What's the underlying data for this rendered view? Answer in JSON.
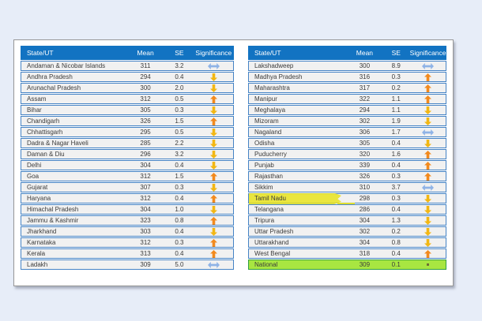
{
  "page": {
    "background": "#e7edf8",
    "card_background": "#ffffff"
  },
  "colors": {
    "header_bg": "#1273c2",
    "header_text": "#ffffff",
    "row_bg": "#f1f1f1",
    "row_border": "#4583c5",
    "up_arrow": "#f28a1e",
    "down_arrow": "#f2b714",
    "no_change_arrow": "#8fb3e6",
    "national_row_bg": "#a8e641",
    "highlight_marker": "#e9e312"
  },
  "columns": [
    "State/UT",
    "Mean",
    "SE",
    "Significance"
  ],
  "icon_legend": {
    "up": "up-arrow-icon",
    "down": "down-arrow-icon",
    "no-change": "double-headed-arrow-icon",
    "dot": "dot-icon"
  },
  "left_table": {
    "rows": [
      {
        "state": "Andaman & Nicobar Islands",
        "mean": "311",
        "se": "3.2",
        "sig": "no-change"
      },
      {
        "state": "Andhra Pradesh",
        "mean": "294",
        "se": "0.4",
        "sig": "down"
      },
      {
        "state": "Arunachal Pradesh",
        "mean": "300",
        "se": "2.0",
        "sig": "down"
      },
      {
        "state": "Assam",
        "mean": "312",
        "se": "0.5",
        "sig": "up"
      },
      {
        "state": "Bihar",
        "mean": "305",
        "se": "0.3",
        "sig": "down"
      },
      {
        "state": "Chandigarh",
        "mean": "326",
        "se": "1.5",
        "sig": "up"
      },
      {
        "state": "Chhattisgarh",
        "mean": "295",
        "se": "0.5",
        "sig": "down"
      },
      {
        "state": "Dadra & Nagar Haveli",
        "mean": "285",
        "se": "2.2",
        "sig": "down"
      },
      {
        "state": "Daman & Diu",
        "mean": "296",
        "se": "3.2",
        "sig": "down"
      },
      {
        "state": "Delhi",
        "mean": "304",
        "se": "0.4",
        "sig": "down"
      },
      {
        "state": "Goa",
        "mean": "312",
        "se": "1.5",
        "sig": "up"
      },
      {
        "state": "Gujarat",
        "mean": "307",
        "se": "0.3",
        "sig": "down"
      },
      {
        "state": "Haryana",
        "mean": "312",
        "se": "0.4",
        "sig": "up"
      },
      {
        "state": "Himachal Pradesh",
        "mean": "304",
        "se": "1.0",
        "sig": "down"
      },
      {
        "state": "Jammu & Kashmir",
        "mean": "323",
        "se": "0.8",
        "sig": "up"
      },
      {
        "state": "Jharkhand",
        "mean": "303",
        "se": "0.4",
        "sig": "down"
      },
      {
        "state": "Karnataka",
        "mean": "312",
        "se": "0.3",
        "sig": "up"
      },
      {
        "state": "Kerala",
        "mean": "313",
        "se": "0.4",
        "sig": "up"
      },
      {
        "state": "Ladakh",
        "mean": "309",
        "se": "5.0",
        "sig": "no-change"
      }
    ]
  },
  "right_table": {
    "rows": [
      {
        "state": "Lakshadweep",
        "mean": "300",
        "se": "8.9",
        "sig": "no-change"
      },
      {
        "state": "Madhya Pradesh",
        "mean": "316",
        "se": "0.3",
        "sig": "up"
      },
      {
        "state": "Maharashtra",
        "mean": "317",
        "se": "0.2",
        "sig": "up"
      },
      {
        "state": "Manipur",
        "mean": "322",
        "se": "1.1",
        "sig": "up"
      },
      {
        "state": "Meghalaya",
        "mean": "294",
        "se": "1.1",
        "sig": "down"
      },
      {
        "state": "Mizoram",
        "mean": "302",
        "se": "1.9",
        "sig": "down"
      },
      {
        "state": "Nagaland",
        "mean": "306",
        "se": "1.7",
        "sig": "no-change"
      },
      {
        "state": "Odisha",
        "mean": "305",
        "se": "0.4",
        "sig": "down"
      },
      {
        "state": "Puducherry",
        "mean": "320",
        "se": "1.6",
        "sig": "up"
      },
      {
        "state": "Punjab",
        "mean": "339",
        "se": "0.4",
        "sig": "up"
      },
      {
        "state": "Rajasthan",
        "mean": "326",
        "se": "0.3",
        "sig": "up"
      },
      {
        "state": "Sikkim",
        "mean": "310",
        "se": "3.7",
        "sig": "no-change"
      },
      {
        "state": "Tamil Nadu",
        "mean": "298",
        "se": "0.3",
        "sig": "down",
        "highlighted": true
      },
      {
        "state": "Telangana",
        "mean": "286",
        "se": "0.4",
        "sig": "down"
      },
      {
        "state": "Tripura",
        "mean": "304",
        "se": "1.3",
        "sig": "down"
      },
      {
        "state": "Uttar Pradesh",
        "mean": "302",
        "se": "0.2",
        "sig": "down"
      },
      {
        "state": "Uttarakhand",
        "mean": "304",
        "se": "0.8",
        "sig": "down"
      },
      {
        "state": "West Bengal",
        "mean": "318",
        "se": "0.4",
        "sig": "up"
      },
      {
        "state": "National",
        "mean": "309",
        "se": "0.1",
        "sig": "dot",
        "national": true
      }
    ]
  }
}
